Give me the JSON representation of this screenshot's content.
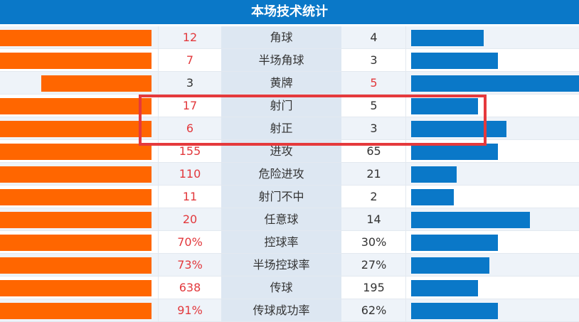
{
  "title": "本场技术统计",
  "rows": [
    {
      "home": 12,
      "stat": "角球",
      "away": 4
    },
    {
      "home": 7,
      "stat": "半场角球",
      "away": 3
    },
    {
      "home": 3,
      "stat": "黄牌",
      "away": 5
    },
    {
      "home": 17,
      "stat": "射门",
      "away": 5
    },
    {
      "home": 6,
      "stat": "射正",
      "away": 3
    },
    {
      "home": 155,
      "stat": "进攻",
      "away": 65
    },
    {
      "home": 110,
      "stat": "危险进攻",
      "away": 21
    },
    {
      "home": 11,
      "stat": "射门不中",
      "away": 2
    },
    {
      "home": 20,
      "stat": "任意球",
      "away": 14
    },
    {
      "home": "70%",
      "stat": "控球率",
      "away": "30%"
    },
    {
      "home": "73%",
      "stat": "半场控球率",
      "away": "27%"
    },
    {
      "home": 638,
      "stat": "传球",
      "away": 195
    },
    {
      "home": "91%",
      "stat": "传球成功率",
      "away": "62%"
    }
  ]
}
